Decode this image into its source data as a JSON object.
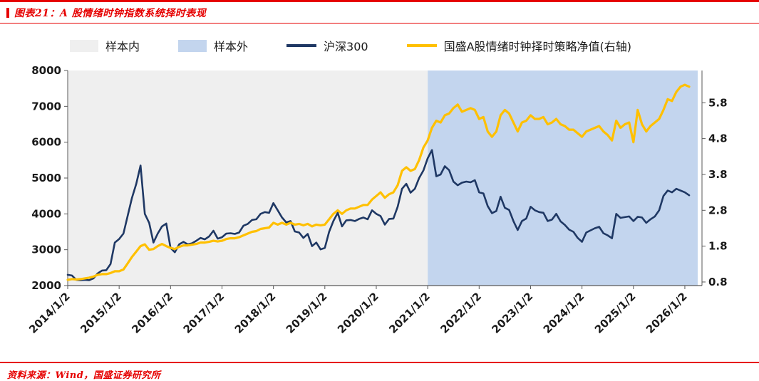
{
  "header": {
    "title": "图表21：A 股情绪时钟指数系统择时表现"
  },
  "footer": {
    "source": "资料来源：Wind，国盛证券研究所"
  },
  "colors": {
    "accent_red": "#E60000",
    "csi300_navy": "#1F3864",
    "strategy_yellow": "#FFC000",
    "in_sample_gray": "#EFEFEF",
    "out_sample_blue": "#C3D5EE"
  },
  "chart_data": {
    "type": "line",
    "title": "A股情绪时钟指数系统择时表现",
    "legend": [
      {
        "slug": "in-sample",
        "label": "样本内",
        "swatch": "area",
        "color": "#EFEFEF"
      },
      {
        "slug": "out-of-sample",
        "label": "样本外",
        "swatch": "area",
        "color": "#C3D5EE"
      },
      {
        "slug": "csi300",
        "label": "沪深300",
        "swatch": "line",
        "color": "#1F3864"
      },
      {
        "slug": "strategy-nav",
        "label": "国盛A股情绪时钟择时策略净值(右轴)",
        "swatch": "line",
        "color": "#FFC000"
      }
    ],
    "x_tick_labels": [
      "2014/1/2",
      "2015/1/2",
      "2016/1/2",
      "2017/1/2",
      "2018/1/2",
      "2019/1/2",
      "2020/1/2",
      "2021/1/2",
      "2022/1/2",
      "2023/1/2",
      "2024/1/2",
      "2025/1/2",
      "2026/1/2"
    ],
    "x_tick_step": 12,
    "x_slots": 148,
    "left_axis": {
      "min": 2000,
      "max": 8000,
      "ticks": [
        2000,
        3000,
        4000,
        5000,
        6000,
        7000,
        8000
      ]
    },
    "right_axis": {
      "min": 0.7,
      "max": 6.7,
      "ticks": [
        0.8,
        1.8,
        2.8,
        3.8,
        4.8,
        5.8
      ],
      "label": "(右轴)"
    },
    "regions": [
      {
        "name": "in-sample-region",
        "label": "样本内",
        "start": 0,
        "end": 84,
        "color": "#EFEFEF"
      },
      {
        "name": "out-of-sample-region",
        "label": "样本外",
        "start": 84,
        "end": 147,
        "color": "#C3D5EE"
      }
    ],
    "series": [
      {
        "name": "沪深300",
        "slug": "csi300",
        "axis": "left",
        "color": "#1F3864",
        "width": 2.6,
        "values": [
          2300,
          2280,
          2160,
          2150,
          2160,
          2150,
          2200,
          2340,
          2420,
          2430,
          2600,
          3200,
          3300,
          3450,
          3950,
          4450,
          4840,
          5350,
          4000,
          3750,
          3200,
          3450,
          3650,
          3730,
          3050,
          2930,
          3150,
          3220,
          3150,
          3180,
          3250,
          3330,
          3290,
          3370,
          3530,
          3310,
          3350,
          3450,
          3460,
          3440,
          3480,
          3670,
          3720,
          3830,
          3850,
          4000,
          4050,
          4030,
          4300,
          4100,
          3900,
          3760,
          3800,
          3510,
          3480,
          3330,
          3440,
          3100,
          3200,
          3010,
          3050,
          3500,
          3800,
          4030,
          3650,
          3820,
          3830,
          3800,
          3860,
          3900,
          3850,
          4100,
          4000,
          3940,
          3700,
          3860,
          3870,
          4200,
          4700,
          4840,
          4590,
          4700,
          5000,
          5210,
          5550,
          5780,
          5050,
          5100,
          5330,
          5220,
          4900,
          4800,
          4870,
          4900,
          4880,
          4940,
          4600,
          4570,
          4220,
          4020,
          4080,
          4480,
          4170,
          4110,
          3800,
          3550,
          3800,
          3870,
          4200,
          4100,
          4050,
          4030,
          3800,
          3840,
          4000,
          3790,
          3690,
          3560,
          3500,
          3330,
          3220,
          3480,
          3540,
          3600,
          3640,
          3460,
          3400,
          3320,
          4000,
          3890,
          3910,
          3930,
          3800,
          3920,
          3900,
          3750,
          3850,
          3930,
          4100,
          4500,
          4650,
          4600,
          4700,
          4650,
          4600,
          4520
        ]
      },
      {
        "name": "国盛A股情绪时钟择时策略净值(右轴)",
        "slug": "strategy-nav",
        "axis": "right",
        "color": "#FFC000",
        "width": 3.2,
        "values": [
          0.86,
          0.88,
          0.87,
          0.88,
          0.9,
          0.92,
          0.95,
          1.0,
          1.02,
          1.02,
          1.05,
          1.1,
          1.1,
          1.15,
          1.32,
          1.5,
          1.65,
          1.8,
          1.85,
          1.7,
          1.72,
          1.8,
          1.86,
          1.8,
          1.75,
          1.72,
          1.78,
          1.82,
          1.82,
          1.84,
          1.86,
          1.9,
          1.9,
          1.92,
          1.95,
          1.93,
          1.95,
          2.0,
          2.02,
          2.02,
          2.05,
          2.1,
          2.15,
          2.2,
          2.22,
          2.28,
          2.3,
          2.32,
          2.45,
          2.4,
          2.45,
          2.4,
          2.45,
          2.4,
          2.42,
          2.38,
          2.42,
          2.35,
          2.4,
          2.38,
          2.4,
          2.55,
          2.7,
          2.8,
          2.7,
          2.8,
          2.85,
          2.85,
          2.9,
          2.95,
          2.95,
          3.1,
          3.2,
          3.3,
          3.15,
          3.25,
          3.3,
          3.5,
          3.9,
          4.0,
          3.9,
          3.95,
          4.2,
          4.55,
          4.75,
          5.1,
          5.3,
          5.25,
          5.45,
          5.5,
          5.65,
          5.75,
          5.55,
          5.6,
          5.65,
          5.6,
          5.35,
          5.4,
          5.0,
          4.85,
          5.0,
          5.45,
          5.6,
          5.5,
          5.25,
          5.0,
          5.25,
          5.3,
          5.45,
          5.35,
          5.35,
          5.4,
          5.2,
          5.25,
          5.35,
          5.2,
          5.15,
          5.05,
          5.05,
          4.95,
          4.85,
          5.0,
          5.05,
          5.1,
          5.15,
          5.0,
          4.9,
          4.75,
          5.3,
          5.1,
          5.2,
          5.25,
          4.7,
          5.6,
          5.2,
          5.0,
          5.15,
          5.25,
          5.35,
          5.6,
          5.9,
          5.85,
          6.1,
          6.25,
          6.3,
          6.25
        ]
      }
    ]
  }
}
